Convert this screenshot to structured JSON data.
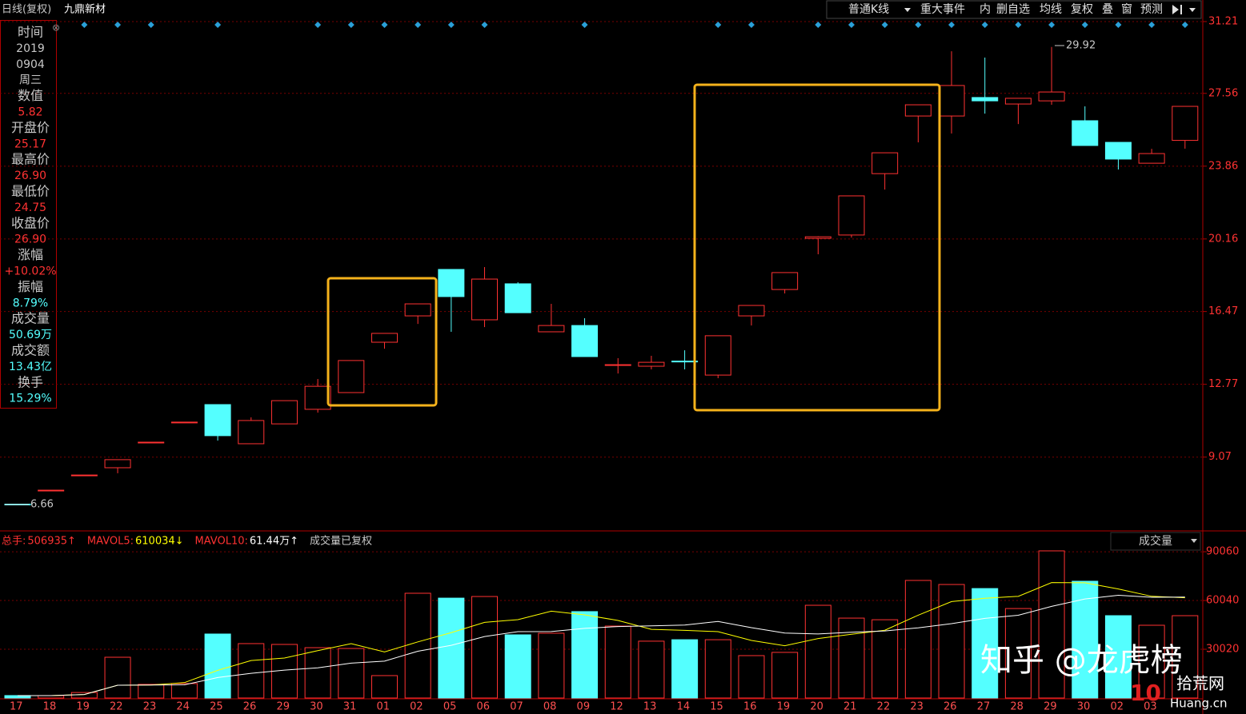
{
  "header": {
    "period": "日线(复权)",
    "stock": "九鼎新材"
  },
  "toolbar": [
    "普通K线",
    "重大事件",
    "内",
    "删自选",
    "均线",
    "复权",
    "叠",
    "窗",
    "预测"
  ],
  "info_panel": [
    {
      "label": "时间",
      "values": [
        "2019",
        "0904",
        "周三"
      ],
      "color": "#c8c8c8"
    },
    {
      "label": "数值",
      "values": [
        "5.82"
      ],
      "color": "#ff3232"
    },
    {
      "label": "开盘价",
      "values": [
        "25.17"
      ],
      "color": "#ff3232"
    },
    {
      "label": "最高价",
      "values": [
        "26.90"
      ],
      "color": "#ff3232"
    },
    {
      "label": "最低价",
      "values": [
        "24.75"
      ],
      "color": "#ff3232"
    },
    {
      "label": "收盘价",
      "values": [
        "26.90"
      ],
      "color": "#ff3232"
    },
    {
      "label": "涨幅",
      "values": [
        "+10.02%"
      ],
      "color": "#ff3232"
    },
    {
      "label": "振幅",
      "values": [
        "8.79%"
      ],
      "color": "#54ffff"
    },
    {
      "label": "成交量",
      "values": [
        "50.69万"
      ],
      "color": "#54ffff"
    },
    {
      "label": "成交额",
      "values": [
        "13.43亿"
      ],
      "color": "#54ffff"
    },
    {
      "label": "换手",
      "values": [
        "15.29%"
      ],
      "color": "#54ffff"
    }
  ],
  "chart_data": {
    "type": "candlestick",
    "categories": [
      "17",
      "18",
      "19",
      "22",
      "23",
      "24",
      "25",
      "26",
      "29",
      "30",
      "31",
      "01",
      "02",
      "05",
      "06",
      "07",
      "08",
      "09",
      "12",
      "13",
      "14",
      "15",
      "16",
      "19",
      "20",
      "21",
      "22",
      "23",
      "26",
      "27",
      "28",
      "29",
      "30",
      "02",
      "03",
      null
    ],
    "open": [
      6.68,
      7.39,
      8.16,
      8.53,
      9.83,
      10.85,
      11.74,
      9.75,
      10.76,
      11.5,
      12.35,
      14.91,
      16.25,
      18.61,
      16.05,
      17.88,
      15.44,
      15.76,
      13.77,
      13.69,
      13.95,
      13.24,
      16.25,
      17.59,
      20.19,
      20.36,
      23.48,
      26.41,
      26.41,
      27.35,
      27.02,
      27.18,
      26.17,
      25.07,
      24.01,
      25.17
    ],
    "high": [
      6.68,
      7.39,
      8.16,
      8.94,
      9.83,
      10.85,
      11.74,
      11.09,
      11.94,
      13.04,
      13.98,
      15.36,
      16.86,
      18.61,
      18.73,
      17.96,
      16.86,
      16.13,
      14.1,
      14.22,
      14.5,
      15.24,
      16.78,
      18.45,
      20.3,
      22.35,
      24.54,
      26.98,
      29.7,
      29.38,
      27.31,
      29.92,
      26.9,
      25.07,
      24.74,
      26.9
    ],
    "low": [
      6.66,
      7.39,
      8.16,
      8.25,
      9.83,
      10.85,
      9.91,
      9.75,
      10.76,
      11.33,
      12.35,
      14.58,
      15.84,
      15.44,
      15.68,
      16.41,
      15.44,
      14.18,
      13.32,
      13.53,
      13.53,
      13.08,
      15.76,
      17.39,
      19.38,
      20.23,
      22.67,
      25.07,
      25.52,
      26.53,
      26.0,
      26.98,
      24.91,
      23.69,
      24.01,
      24.75
    ],
    "close": [
      6.66,
      7.39,
      8.16,
      8.94,
      9.83,
      10.85,
      10.16,
      10.93,
      11.94,
      12.67,
      13.98,
      15.36,
      16.86,
      17.23,
      18.12,
      16.41,
      15.76,
      14.18,
      13.77,
      13.89,
      13.91,
      15.24,
      16.78,
      18.45,
      20.27,
      22.35,
      24.54,
      26.98,
      27.96,
      27.18,
      27.31,
      27.63,
      24.91,
      24.22,
      24.5,
      26.9
    ],
    "up_color": "#ff3232",
    "down_color": "#54ffff",
    "ylim": [
      5.4,
      31.9
    ],
    "yticks": [
      9.07,
      12.77,
      16.47,
      20.16,
      23.86,
      27.56,
      31.21
    ],
    "grid": true,
    "annotations": [
      "29.92",
      "6.66"
    ],
    "volume": {
      "title": "成交量",
      "legend": [
        {
          "label": "总手:",
          "value": "506935↑",
          "color": "#ff3232"
        },
        {
          "label": "MAVOL5:",
          "value": "610034↓",
          "color": "#ffff00"
        },
        {
          "label": "MAVOL10:",
          "value": "61.44万↑",
          "color": "#ffffff"
        },
        {
          "label": "成交量已复权",
          "value": "",
          "color": "#c8c8c8"
        }
      ],
      "values": [
        1500,
        1500,
        3400,
        25100,
        8400,
        8900,
        39400,
        33500,
        33000,
        31000,
        30500,
        13800,
        64500,
        61500,
        62500,
        38900,
        39900,
        53200,
        44300,
        35000,
        35900,
        35900,
        26100,
        28100,
        57100,
        49200,
        48200,
        72400,
        69900,
        67400,
        55100,
        90600,
        71900,
        50700,
        44800,
        50700
      ],
      "ma_periods": [
        5,
        10
      ],
      "ma_colors": [
        "#ffff00",
        "#ffffff"
      ],
      "ylim": [
        0,
        102400
      ],
      "yticks": [
        30020,
        60040,
        90060
      ]
    }
  },
  "watermark": {
    "text": "知乎 @龙虎榜",
    "logo": "10",
    "site": "拾荒网",
    "url": "Huang.cn"
  }
}
